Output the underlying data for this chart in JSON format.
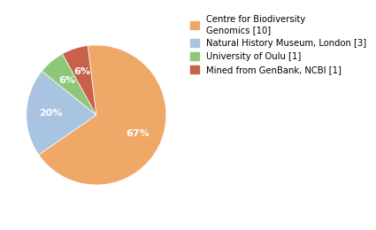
{
  "labels": [
    "Centre for Biodiversity\nGenomics [10]",
    "Natural History Museum, London [3]",
    "University of Oulu [1]",
    "Mined from GenBank, NCBI [1]"
  ],
  "values": [
    66,
    20,
    6,
    6
  ],
  "colors": [
    "#f0a868",
    "#a8c4e0",
    "#8dc87a",
    "#c8614a"
  ],
  "startangle": 97,
  "background_color": "#ffffff",
  "legend_fontsize": 7.2,
  "pct_fontsize": 8.0
}
